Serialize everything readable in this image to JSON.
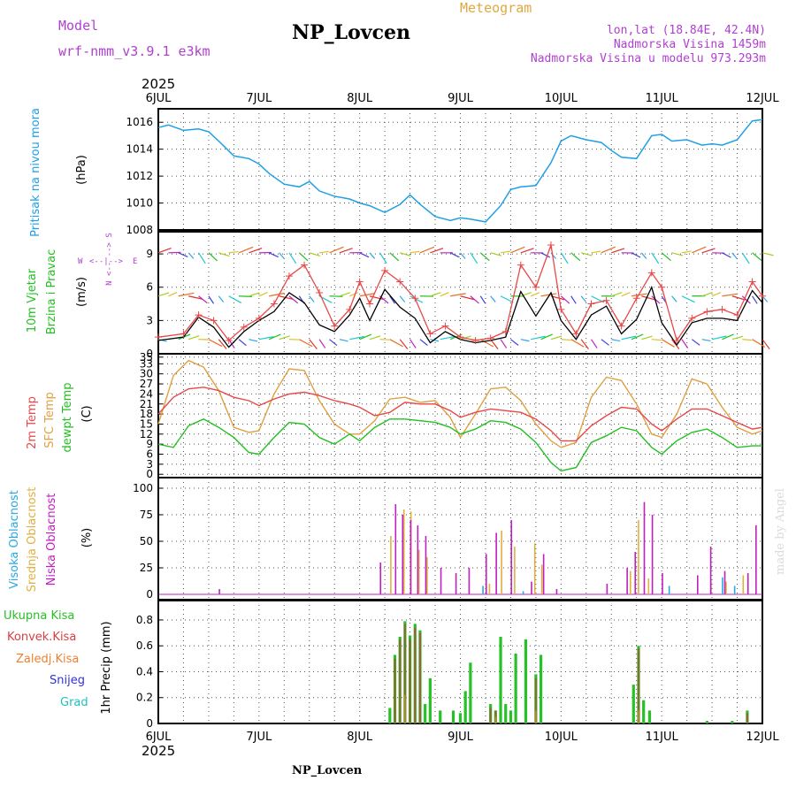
{
  "header": {
    "model_label": "Model",
    "model_value": "wrf-nmm_v3.9.1 e3km",
    "station": "NP_Lovcen",
    "meteogram": "Meteogram",
    "lonlat": "lon,lat (18.84E, 42.4N)",
    "elevation": "Nadmorska Visina 1459m",
    "elevation_model": "Nadmorska Visina u modelu 973.293m",
    "year_top": "2025",
    "year_bottom": "2025",
    "footer_station": "NP_Lovcen",
    "watermark": "made by Angel"
  },
  "colors": {
    "pressure": "#1ea0e6",
    "temp2m": "#e84848",
    "sfc": "#e0a040",
    "dewpt": "#22c020",
    "high_cloud": "#2aa8e0",
    "mid_cloud": "#e0b040",
    "low_cloud": "#c020c0",
    "total_precip": "#28c028",
    "conv_precip": "#d84040",
    "strat_precip": "#f08030",
    "snow": "#3030e0",
    "hail": "#20c0c0",
    "legend_purple": "#b040d0",
    "legend_orange": "#e0a840"
  },
  "chart_data": [
    {
      "id": "pressure",
      "type": "line",
      "ylabel": "Pritisak na nivou mora",
      "unit": "(hPa)",
      "ylim": [
        1008,
        1017
      ],
      "yticks": [
        1008,
        1010,
        1012,
        1014,
        1016
      ],
      "x_days": [
        "6JUL",
        "7JUL",
        "8JUL",
        "9JUL",
        "10JUL",
        "11JUL",
        "12JUL"
      ],
      "x": [
        0,
        0.1,
        0.25,
        0.4,
        0.5,
        0.6,
        0.75,
        0.9,
        1.0,
        1.1,
        1.25,
        1.4,
        1.5,
        1.6,
        1.75,
        1.9,
        2.0,
        2.1,
        2.25,
        2.4,
        2.5,
        2.6,
        2.75,
        2.9,
        3.0,
        3.1,
        3.25,
        3.4,
        3.5,
        3.6,
        3.75,
        3.9,
        4.0,
        4.1,
        4.25,
        4.4,
        4.5,
        4.6,
        4.75,
        4.9,
        5.0,
        5.1,
        5.25,
        5.4,
        5.5,
        5.6,
        5.75,
        5.9,
        6.0
      ],
      "values": [
        1015.6,
        1015.8,
        1015.4,
        1015.5,
        1015.3,
        1014.6,
        1013.5,
        1013.3,
        1012.9,
        1012.2,
        1011.4,
        1011.2,
        1011.6,
        1010.9,
        1010.5,
        1010.3,
        1010.0,
        1009.8,
        1009.3,
        1009.9,
        1010.6,
        1009.9,
        1009.0,
        1008.7,
        1008.9,
        1008.8,
        1008.6,
        1009.8,
        1011.0,
        1011.2,
        1011.3,
        1013.0,
        1014.6,
        1015.0,
        1014.7,
        1014.5,
        1013.9,
        1013.4,
        1013.3,
        1015.0,
        1015.1,
        1014.6,
        1014.7,
        1014.3,
        1014.4,
        1014.3,
        1014.7,
        1016.1,
        1016.2
      ]
    },
    {
      "id": "wind",
      "type": "line",
      "ylabel": "10m Vjetar Brzina i Pravac",
      "unit": "(m/s)",
      "ylim": [
        0,
        11
      ],
      "yticks": [
        0,
        3,
        6,
        9
      ],
      "compass": [
        "W",
        "<--|-->",
        "E",
        "N <-- --> S"
      ],
      "x": [
        0,
        0.25,
        0.4,
        0.55,
        0.7,
        0.85,
        1.0,
        1.15,
        1.3,
        1.45,
        1.6,
        1.75,
        1.9,
        2.0,
        2.1,
        2.25,
        2.4,
        2.55,
        2.7,
        2.85,
        3.0,
        3.15,
        3.3,
        3.45,
        3.6,
        3.75,
        3.9,
        4.0,
        4.15,
        4.3,
        4.45,
        4.6,
        4.75,
        4.9,
        5.0,
        5.15,
        5.3,
        5.45,
        5.6,
        5.75,
        5.9,
        6.0
      ],
      "speed_black": [
        1.2,
        1.5,
        3.3,
        2.4,
        0.6,
        2.0,
        3.0,
        3.8,
        5.5,
        4.6,
        2.6,
        2.0,
        3.5,
        5.0,
        3.0,
        5.8,
        4.2,
        3.2,
        1.0,
        2.0,
        1.3,
        1.0,
        1.2,
        1.5,
        5.6,
        3.4,
        5.5,
        3.0,
        1.3,
        3.5,
        4.3,
        1.8,
        3.1,
        6.0,
        2.8,
        0.8,
        2.8,
        3.2,
        3.2,
        3.0,
        5.7,
        4.6
      ],
      "gust_red": [
        1.5,
        1.8,
        3.5,
        3.0,
        1.2,
        2.4,
        3.2,
        4.5,
        7.0,
        8.0,
        5.5,
        2.5,
        4.0,
        6.5,
        4.5,
        7.5,
        6.5,
        5.0,
        1.8,
        2.5,
        1.5,
        1.2,
        1.4,
        2.0,
        8.0,
        6.0,
        9.8,
        4.0,
        1.8,
        4.5,
        4.8,
        2.5,
        5.0,
        7.3,
        6.0,
        1.2,
        3.2,
        3.8,
        4.0,
        3.5,
        6.5,
        5.2
      ]
    },
    {
      "id": "temp",
      "type": "line",
      "ylabel": [
        "2m Temp",
        "SFC Temp",
        "dewpt Temp"
      ],
      "unit": "(C)",
      "ylim": [
        -1,
        36
      ],
      "yticks": [
        0,
        3,
        6,
        9,
        12,
        15,
        18,
        21,
        24,
        27,
        30,
        33,
        35
      ],
      "x": [
        0,
        0.15,
        0.3,
        0.45,
        0.6,
        0.75,
        0.9,
        1.0,
        1.15,
        1.3,
        1.45,
        1.6,
        1.75,
        1.9,
        2.0,
        2.15,
        2.3,
        2.45,
        2.6,
        2.75,
        2.9,
        3.0,
        3.15,
        3.3,
        3.45,
        3.6,
        3.75,
        3.9,
        4.0,
        4.15,
        4.3,
        4.45,
        4.6,
        4.75,
        4.9,
        5.0,
        5.15,
        5.3,
        5.45,
        5.6,
        5.75,
        5.9,
        6.0
      ],
      "temp2m": [
        18,
        23,
        25.5,
        26,
        25,
        23,
        22,
        20.5,
        22.5,
        24,
        24.5,
        23.5,
        22,
        21,
        20,
        17.5,
        18.5,
        21.5,
        21,
        21,
        19,
        17,
        18.5,
        19.5,
        19,
        18.5,
        16.5,
        13,
        10,
        10,
        14.5,
        17.5,
        20,
        19.5,
        15,
        13,
        16.5,
        19.5,
        19.5,
        17.5,
        15.5,
        13.5,
        14
      ],
      "sfc": [
        15,
        29.5,
        34,
        32,
        25,
        14,
        12.5,
        13,
        24,
        31.5,
        31,
        22,
        15,
        12,
        12,
        16,
        22.5,
        23,
        21.5,
        22,
        17,
        11,
        18,
        25.5,
        26,
        22,
        15,
        10,
        8,
        9.5,
        23,
        29,
        28,
        21,
        12,
        11,
        18,
        28.5,
        27,
        20,
        14,
        12,
        13
      ],
      "dewpt": [
        9,
        8,
        14.5,
        16.5,
        14,
        11,
        6.5,
        6,
        11,
        15.5,
        15,
        11,
        9,
        12,
        10,
        14,
        16.5,
        16.5,
        16,
        15.5,
        14,
        12,
        13.5,
        16,
        15.5,
        13.5,
        9.5,
        3.5,
        1,
        2,
        9.5,
        11.5,
        14,
        13,
        8,
        6,
        10,
        12.5,
        13.5,
        11,
        8,
        8.5,
        8.5
      ]
    },
    {
      "id": "cloud",
      "type": "bar",
      "ylabel": [
        "Visoka Oblacnost",
        "Srednja Oblacnost",
        "Niska Oblacnost"
      ],
      "unit": "(%)",
      "ylim": [
        -5,
        110
      ],
      "yticks": [
        0,
        25,
        50,
        75,
        100
      ],
      "low": [
        [
          0.6,
          5
        ],
        [
          2.2,
          30
        ],
        [
          2.35,
          85
        ],
        [
          2.42,
          75
        ],
        [
          2.5,
          70
        ],
        [
          2.57,
          65
        ],
        [
          2.65,
          55
        ],
        [
          2.8,
          25
        ],
        [
          2.95,
          20
        ],
        [
          3.08,
          25
        ],
        [
          3.25,
          38
        ],
        [
          3.35,
          58
        ],
        [
          3.5,
          70
        ],
        [
          3.7,
          12
        ],
        [
          3.82,
          38
        ],
        [
          3.95,
          5
        ],
        [
          4.45,
          10
        ],
        [
          4.65,
          25
        ],
        [
          4.73,
          40
        ],
        [
          4.82,
          87
        ],
        [
          4.9,
          75
        ],
        [
          5.0,
          20
        ],
        [
          5.35,
          18
        ],
        [
          5.48,
          45
        ],
        [
          5.62,
          22
        ],
        [
          5.85,
          20
        ],
        [
          5.93,
          65
        ]
      ],
      "mid": [
        [
          2.32,
          55
        ],
        [
          2.45,
          80
        ],
        [
          2.52,
          78
        ],
        [
          2.6,
          42
        ],
        [
          2.68,
          35
        ],
        [
          3.3,
          10
        ],
        [
          3.42,
          60
        ],
        [
          3.55,
          45
        ],
        [
          3.75,
          48
        ],
        [
          3.82,
          28
        ],
        [
          4.7,
          22
        ],
        [
          4.78,
          70
        ],
        [
          4.88,
          15
        ],
        [
          5.5,
          12
        ],
        [
          5.65,
          12
        ],
        [
          5.82,
          18
        ]
      ],
      "high": [
        [
          3.2,
          8
        ],
        [
          3.6,
          3
        ],
        [
          5.05,
          8
        ],
        [
          5.58,
          16
        ],
        [
          5.7,
          8
        ]
      ]
    },
    {
      "id": "precip",
      "type": "bar",
      "ylabel": "1hr Precip (mm)",
      "legend": [
        "Ukupna Kisa",
        "Konvek.Kisa",
        "Zaledj.Kisa",
        "Snijeg",
        "Grad"
      ],
      "ylim": [
        0,
        0.95
      ],
      "yticks": [
        0,
        0.2,
        0.4,
        0.6,
        0.8
      ],
      "total": [
        [
          2.3,
          0.12
        ],
        [
          2.35,
          0.53
        ],
        [
          2.4,
          0.67
        ],
        [
          2.45,
          0.79
        ],
        [
          2.5,
          0.68
        ],
        [
          2.55,
          0.77
        ],
        [
          2.6,
          0.72
        ],
        [
          2.65,
          0.15
        ],
        [
          2.7,
          0.35
        ],
        [
          2.8,
          0.1
        ],
        [
          2.93,
          0.1
        ],
        [
          3.0,
          0.08
        ],
        [
          3.05,
          0.25
        ],
        [
          3.1,
          0.47
        ],
        [
          3.3,
          0.15
        ],
        [
          3.35,
          0.1
        ],
        [
          3.4,
          0.67
        ],
        [
          3.45,
          0.15
        ],
        [
          3.5,
          0.1
        ],
        [
          3.55,
          0.54
        ],
        [
          3.65,
          0.65
        ],
        [
          3.75,
          0.38
        ],
        [
          3.8,
          0.53
        ],
        [
          4.72,
          0.3
        ],
        [
          4.77,
          0.6
        ],
        [
          4.82,
          0.18
        ],
        [
          4.88,
          0.1
        ],
        [
          5.45,
          0.02
        ],
        [
          5.7,
          0.02
        ],
        [
          5.85,
          0.1
        ]
      ],
      "conv": [
        [
          2.35,
          0.5
        ],
        [
          2.4,
          0.65
        ],
        [
          2.45,
          0.77
        ],
        [
          2.5,
          0.65
        ],
        [
          2.55,
          0.74
        ],
        [
          2.6,
          0.7
        ],
        [
          3.3,
          0.12
        ],
        [
          3.35,
          0.1
        ],
        [
          3.75,
          0.35
        ],
        [
          4.77,
          0.58
        ],
        [
          5.85,
          0.08
        ]
      ],
      "strat": [
        [
          2.45,
          0.22
        ],
        [
          3.35,
          0.05
        ],
        [
          3.75,
          0.1
        ],
        [
          4.77,
          0.1
        ]
      ]
    }
  ]
}
